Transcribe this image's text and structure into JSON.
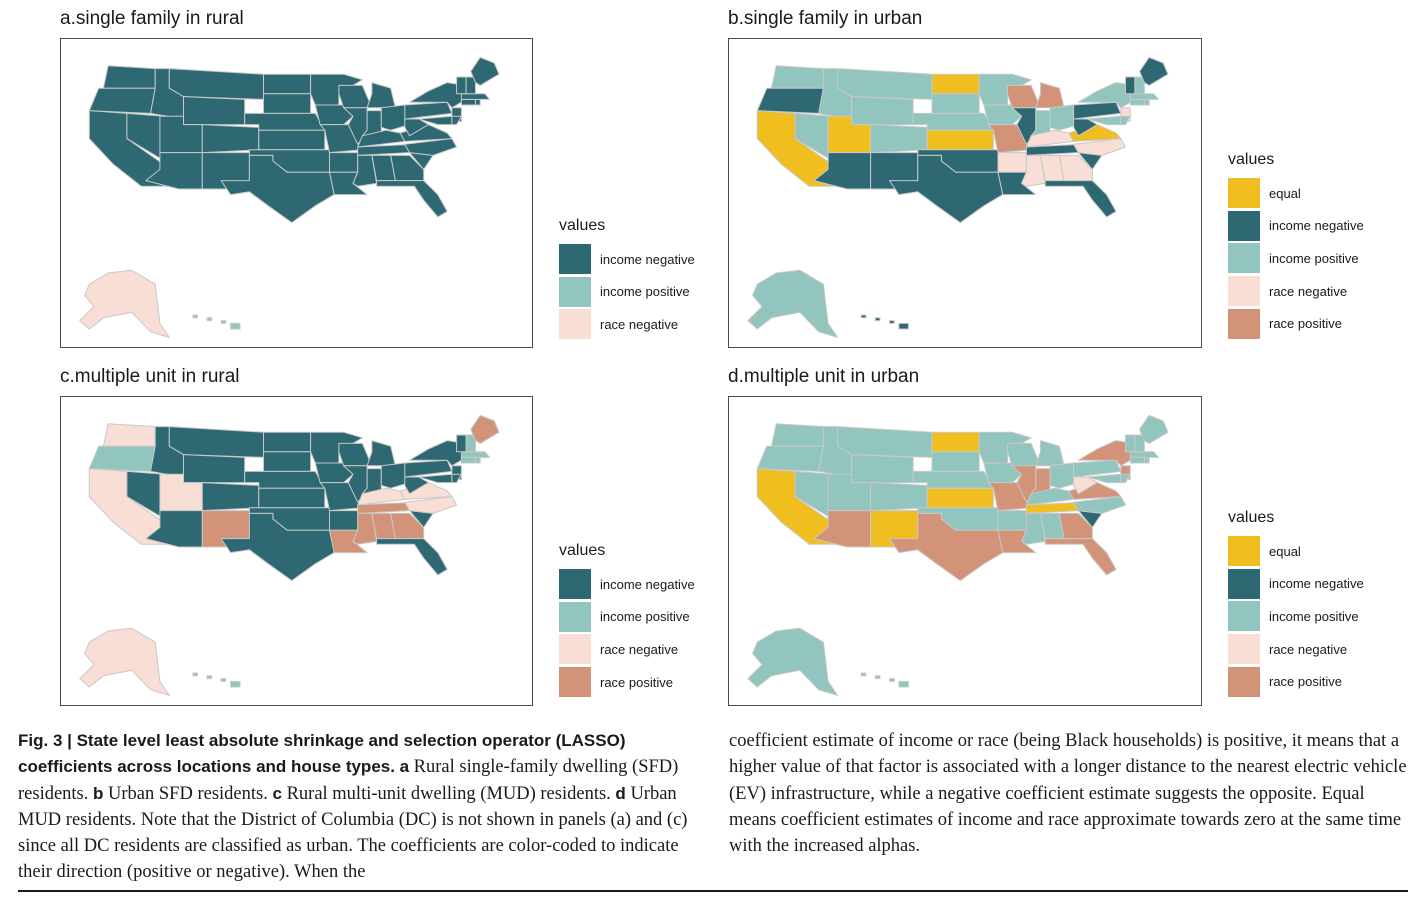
{
  "colors": {
    "equal": "#F0BE1E",
    "income negative": "#2D6873",
    "income positive": "#92C5BD",
    "race negative": "#F9DED5",
    "race positive": "#D39378",
    "border": "#c8c8c8"
  },
  "legend_title": "values",
  "panels": [
    {
      "id": "a",
      "title": "a.single family in rural",
      "legend": [
        "income negative",
        "income positive",
        "race negative"
      ],
      "default": "income negative",
      "alaska": "race negative",
      "hawaii": "income positive",
      "states": {}
    },
    {
      "id": "b",
      "title": "b.single family in urban",
      "legend": [
        "equal",
        "income negative",
        "income positive",
        "race negative",
        "race positive"
      ],
      "default": "income positive",
      "alaska": "income positive",
      "hawaii": "income negative",
      "states": {
        "OR": "income negative",
        "CA": "equal",
        "UT": "equal",
        "ND": "equal",
        "KS": "equal",
        "VA": "equal",
        "AZ": "income negative",
        "NM": "income negative",
        "TX": "income negative",
        "OK": "income negative",
        "LA": "income negative",
        "FL": "income negative",
        "SC": "income negative",
        "TN": "income negative",
        "IL": "income negative",
        "PA": "income negative",
        "WV": "income negative",
        "ME": "income negative",
        "VT": "income negative",
        "WI": "race positive",
        "MI": "race positive",
        "MO": "race positive",
        "NC": "race negative",
        "KY": "race negative",
        "AR": "race negative",
        "MS": "race negative",
        "AL": "race negative",
        "GA": "race negative",
        "NJ": "race negative"
      }
    },
    {
      "id": "c",
      "title": "c.multiple unit in rural",
      "legend": [
        "income negative",
        "income positive",
        "race negative",
        "race positive"
      ],
      "default": "income negative",
      "alaska": "race negative",
      "hawaii": "income positive",
      "states": {
        "WA": "race negative",
        "CA": "race negative",
        "UT": "race negative",
        "KY": "race negative",
        "VA": "race negative",
        "NC": "race negative",
        "OR": "income positive",
        "MA": "income positive",
        "CT": "income positive",
        "RI": "income positive",
        "NH": "income positive",
        "NM": "race positive",
        "ME": "race positive",
        "LA": "race positive",
        "MS": "race positive",
        "AL": "race positive",
        "GA": "race positive",
        "TN": "race positive"
      }
    },
    {
      "id": "d",
      "title": "d.multiple unit in urban",
      "legend": [
        "equal",
        "income negative",
        "income positive",
        "race negative",
        "race positive"
      ],
      "default": "income positive",
      "alaska": "income positive",
      "hawaii": "income positive",
      "states": {
        "CA": "equal",
        "ND": "equal",
        "KS": "equal",
        "NM": "equal",
        "TN": "equal",
        "SC": "income negative",
        "WV": "race negative",
        "AZ": "race positive",
        "TX": "race positive",
        "LA": "race positive",
        "MO": "race positive",
        "IL": "race positive",
        "IN": "race positive",
        "GA": "race positive",
        "FL": "race positive",
        "VA": "race positive",
        "NY": "race positive",
        "NJ": "race positive"
      }
    }
  ],
  "caption": {
    "left": {
      "label": "Fig. 3 | State level least absolute shrinkage and selection operator (LASSO) coefficients across locations and house types.",
      "segments": [
        {
          "bold": "a",
          "text": " Rural single-family dwelling (SFD) residents. "
        },
        {
          "bold": "b",
          "text": " Urban SFD residents. "
        },
        {
          "bold": "c",
          "text": " Rural multi-unit dwelling (MUD) residents. "
        },
        {
          "bold": "d",
          "text": " Urban MUD residents. Note that the District of Columbia (DC) is not shown in panels (a) and (c) since all DC residents are classified as urban. The coefficients are color-coded to indicate their direction (positive or negative). When the"
        }
      ]
    },
    "right": "coefficient estimate of income or race (being Black households) is positive, it means that a higher value of that factor is associated with a longer distance to the nearest electric vehicle (EV) infrastructure, while a negative coefficient estimate suggests the opposite. Equal means coefficient estimates of income and race approximate towards zero at the same time with the increased alphas."
  }
}
